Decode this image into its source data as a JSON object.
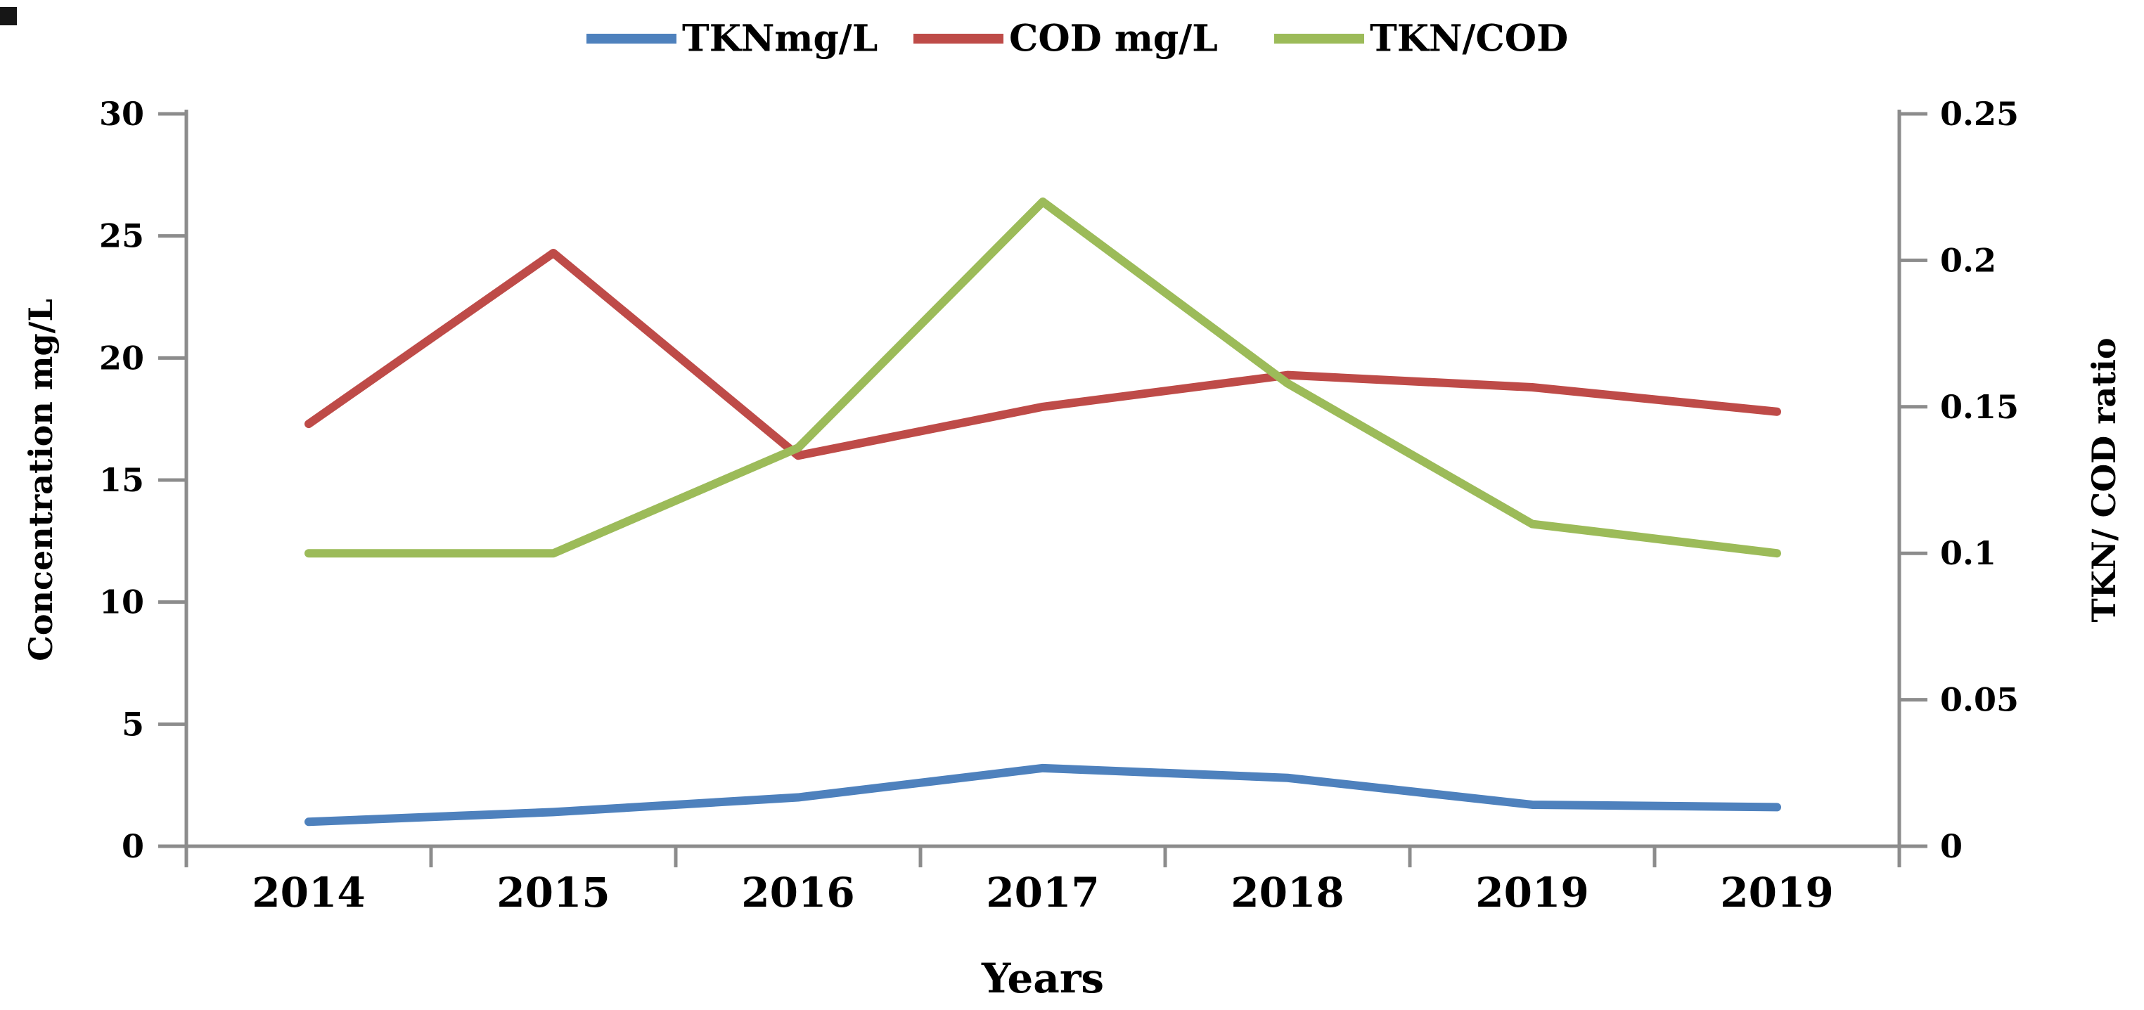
{
  "chart_data": {
    "type": "line",
    "title": "",
    "categories": [
      "2014",
      "2015",
      "2016",
      "2017",
      "2018",
      "2019",
      "2019"
    ],
    "series": [
      {
        "name": "TKNmg/L",
        "axis": "left",
        "color": "#4E81BD",
        "values": [
          1.0,
          1.4,
          2.0,
          3.2,
          2.8,
          1.7,
          1.6
        ]
      },
      {
        "name": "COD mg/L",
        "axis": "left",
        "color": "#BE4B48",
        "values": [
          17.3,
          24.3,
          16.0,
          18.0,
          19.3,
          18.8,
          17.8
        ]
      },
      {
        "name": "TKN/COD",
        "axis": "right",
        "color": "#9CBB59",
        "values": [
          0.1,
          0.1,
          0.136,
          0.22,
          0.158,
          0.11,
          0.1
        ]
      }
    ],
    "x_axis": {
      "label": "Years"
    },
    "left_axis": {
      "label": "Concentration mg/L",
      "min": 0,
      "max": 30,
      "tick_labels": [
        "0",
        "5",
        "10",
        "15",
        "20",
        "25",
        "30"
      ]
    },
    "right_axis": {
      "label": "TKN/ COD ratio",
      "min": 0,
      "max": 0.25,
      "tick_labels": [
        "0",
        "0.05",
        "0.1",
        "0.15",
        "0.2",
        "0.25"
      ]
    },
    "legend_position": "top",
    "grid": false,
    "axis_color": "#8C8C8C",
    "text_color": "#000000"
  }
}
